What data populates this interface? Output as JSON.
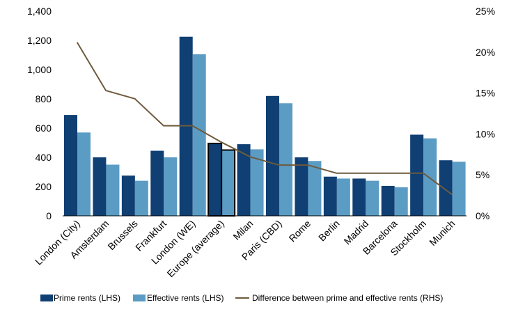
{
  "chart_data": {
    "type": "bar",
    "title": "",
    "xlabel": "",
    "ylabel": "",
    "categories": [
      "London (City)",
      "Amsterdam",
      "Brussels",
      "Frankfurt",
      "London (WE)",
      "Europe (average)",
      "Milan",
      "Paris (CBD)",
      "Rome",
      "Berlin",
      "Madrid",
      "Barcelona",
      "Stockholm",
      "Munich"
    ],
    "highlight_category": "Europe (average)",
    "ylim": [
      0,
      1400
    ],
    "yticks": [
      0,
      200,
      400,
      600,
      800,
      1000,
      1200,
      1400
    ],
    "ytick_labels": [
      "0",
      "200",
      "400",
      "600",
      "800",
      "1,000",
      "1,200",
      "1,400"
    ],
    "y2lim": [
      0,
      25
    ],
    "y2ticks": [
      0,
      5,
      10,
      15,
      20,
      25
    ],
    "y2tick_labels": [
      "0%",
      "5%",
      "10%",
      "15%",
      "20%",
      "25%"
    ],
    "series": [
      {
        "name": "Prime rents (LHS)",
        "kind": "bar",
        "axis": "left",
        "color": "#0f3f73",
        "values": [
          690,
          400,
          275,
          445,
          1225,
          495,
          490,
          820,
          400,
          268,
          255,
          205,
          555,
          380
        ]
      },
      {
        "name": "Effective rents (LHS)",
        "kind": "bar",
        "axis": "left",
        "color": "#5b9cc4",
        "values": [
          570,
          350,
          240,
          400,
          1105,
          450,
          455,
          770,
          375,
          255,
          240,
          195,
          530,
          370
        ]
      },
      {
        "name": "Difference between prime and effective rents (RHS)",
        "kind": "line",
        "axis": "right",
        "color": "#6e5a3c",
        "values": [
          21.2,
          15.3,
          14.3,
          11.0,
          11.0,
          9.0,
          7.2,
          6.2,
          6.2,
          5.2,
          5.2,
          5.2,
          5.2,
          2.6
        ]
      }
    ],
    "grid": false,
    "legend_position": "bottom"
  }
}
